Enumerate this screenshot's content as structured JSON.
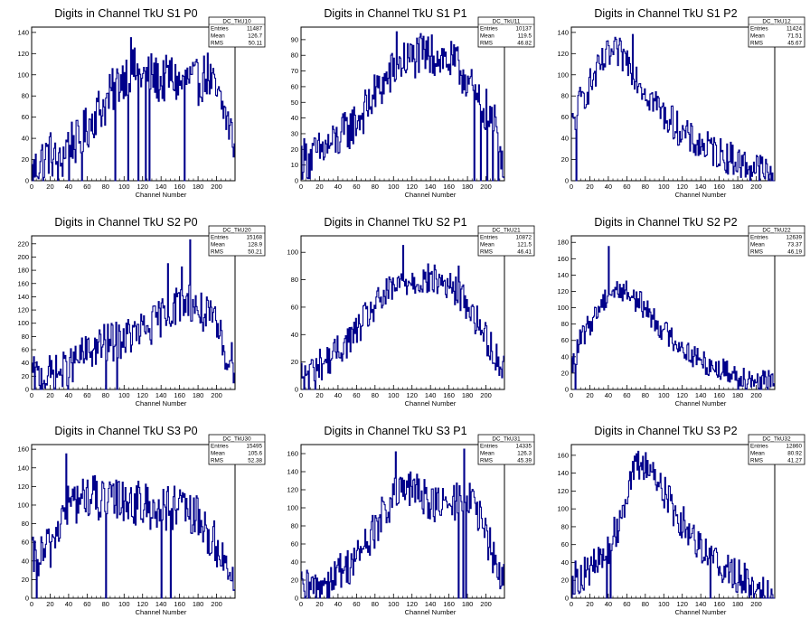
{
  "page": {
    "background": "#ffffff",
    "line_color": "#00008b"
  },
  "chart_data": [
    {
      "type": "line",
      "title": "Digits in Channel TkU S1 P0",
      "xlabel": "Channel Number",
      "xlim": [
        0,
        220
      ],
      "ylim": [
        0,
        145
      ],
      "xticks": [
        0,
        20,
        40,
        60,
        80,
        100,
        120,
        140,
        160,
        180,
        200
      ],
      "yticks": [
        0,
        20,
        40,
        60,
        80,
        100,
        120,
        140
      ],
      "stats": {
        "name": "DC_TkU10",
        "entries": "11487",
        "mean": "126.7",
        "rms": "50.11"
      },
      "profile": [
        [
          0,
          5
        ],
        [
          10,
          20
        ],
        [
          20,
          27
        ],
        [
          30,
          12
        ],
        [
          40,
          40
        ],
        [
          50,
          35
        ],
        [
          60,
          50
        ],
        [
          70,
          65
        ],
        [
          80,
          72
        ],
        [
          90,
          88
        ],
        [
          100,
          100
        ],
        [
          110,
          105
        ],
        [
          120,
          98
        ],
        [
          130,
          100
        ],
        [
          140,
          92
        ],
        [
          150,
          100
        ],
        [
          160,
          90
        ],
        [
          170,
          96
        ],
        [
          180,
          92
        ],
        [
          190,
          102
        ],
        [
          200,
          80
        ],
        [
          210,
          62
        ],
        [
          218,
          38
        ]
      ],
      "spikes": [
        [
          107,
          135
        ],
        [
          12,
          0
        ],
        [
          40,
          0
        ],
        [
          54,
          0
        ],
        [
          90,
          0
        ],
        [
          104,
          0
        ],
        [
          115,
          0
        ],
        [
          123,
          0
        ],
        [
          127,
          0
        ],
        [
          165,
          0
        ]
      ],
      "noise": 22
    },
    {
      "type": "line",
      "title": "Digits in Channel TkU S1 P1",
      "xlabel": "Channel Number",
      "xlim": [
        0,
        220
      ],
      "ylim": [
        0,
        98
      ],
      "xticks": [
        0,
        20,
        40,
        60,
        80,
        100,
        120,
        140,
        160,
        180,
        200
      ],
      "yticks": [
        0,
        10,
        20,
        30,
        40,
        50,
        60,
        70,
        80,
        90
      ],
      "stats": {
        "name": "DC_TkU11",
        "entries": "10137",
        "mean": "119.5",
        "rms": "46.82"
      },
      "profile": [
        [
          0,
          15
        ],
        [
          10,
          14
        ],
        [
          20,
          18
        ],
        [
          30,
          22
        ],
        [
          40,
          26
        ],
        [
          50,
          32
        ],
        [
          60,
          38
        ],
        [
          70,
          45
        ],
        [
          80,
          55
        ],
        [
          90,
          62
        ],
        [
          100,
          70
        ],
        [
          110,
          76
        ],
        [
          120,
          78
        ],
        [
          130,
          80
        ],
        [
          140,
          80
        ],
        [
          150,
          79
        ],
        [
          160,
          76
        ],
        [
          170,
          72
        ],
        [
          180,
          65
        ],
        [
          190,
          50
        ],
        [
          200,
          45
        ],
        [
          210,
          35
        ],
        [
          218,
          15
        ]
      ],
      "spikes": [
        [
          103,
          95
        ],
        [
          141,
          93
        ],
        [
          187,
          0
        ],
        [
          194,
          0
        ],
        [
          201,
          0
        ],
        [
          207,
          0
        ],
        [
          213,
          0
        ]
      ],
      "noise": 14
    },
    {
      "type": "line",
      "title": "Digits in Channel TkU S1 P2",
      "xlabel": "Channel Number",
      "xlim": [
        0,
        220
      ],
      "ylim": [
        0,
        145
      ],
      "xticks": [
        0,
        20,
        40,
        60,
        80,
        100,
        120,
        140,
        160,
        180,
        200
      ],
      "yticks": [
        0,
        20,
        40,
        60,
        80,
        100,
        120,
        140
      ],
      "stats": {
        "name": "DC_TkU12",
        "entries": "11424",
        "mean": "71.51",
        "rms": "45.67"
      },
      "profile": [
        [
          0,
          50
        ],
        [
          10,
          75
        ],
        [
          20,
          90
        ],
        [
          30,
          105
        ],
        [
          40,
          118
        ],
        [
          50,
          120
        ],
        [
          60,
          115
        ],
        [
          70,
          100
        ],
        [
          80,
          85
        ],
        [
          90,
          75
        ],
        [
          100,
          62
        ],
        [
          110,
          55
        ],
        [
          120,
          45
        ],
        [
          130,
          38
        ],
        [
          140,
          33
        ],
        [
          150,
          30
        ],
        [
          160,
          26
        ],
        [
          170,
          22
        ],
        [
          180,
          18
        ],
        [
          190,
          14
        ],
        [
          200,
          12
        ],
        [
          210,
          8
        ],
        [
          218,
          4
        ]
      ],
      "spikes": [
        [
          5,
          0
        ],
        [
          66,
          138
        ],
        [
          213,
          0
        ]
      ],
      "noise": 16
    },
    {
      "type": "line",
      "title": "Digits in Channel TkU S2 P0",
      "xlabel": "Channel Number",
      "xlim": [
        0,
        220
      ],
      "ylim": [
        0,
        232
      ],
      "xticks": [
        0,
        20,
        40,
        60,
        80,
        100,
        120,
        140,
        160,
        180,
        200
      ],
      "yticks": [
        0,
        20,
        40,
        60,
        80,
        100,
        120,
        140,
        160,
        180,
        200,
        220
      ],
      "stats": {
        "name": "DC_TkU20",
        "entries": "15168",
        "mean": "128.9",
        "rms": "50.21"
      },
      "profile": [
        [
          0,
          20
        ],
        [
          10,
          18
        ],
        [
          20,
          22
        ],
        [
          30,
          25
        ],
        [
          40,
          30
        ],
        [
          50,
          45
        ],
        [
          60,
          55
        ],
        [
          70,
          62
        ],
        [
          80,
          70
        ],
        [
          90,
          72
        ],
        [
          100,
          78
        ],
        [
          110,
          82
        ],
        [
          120,
          88
        ],
        [
          130,
          95
        ],
        [
          140,
          110
        ],
        [
          150,
          120
        ],
        [
          160,
          130
        ],
        [
          170,
          135
        ],
        [
          180,
          120
        ],
        [
          190,
          110
        ],
        [
          200,
          95
        ],
        [
          210,
          55
        ],
        [
          218,
          40
        ]
      ],
      "spikes": [
        [
          171,
          226
        ],
        [
          147,
          190
        ],
        [
          162,
          185
        ],
        [
          80,
          0
        ],
        [
          92,
          0
        ]
      ],
      "noise": 30
    },
    {
      "type": "line",
      "title": "Digits in Channel TkU S2 P1",
      "xlabel": "Channel Number",
      "xlim": [
        0,
        220
      ],
      "ylim": [
        0,
        112
      ],
      "xticks": [
        0,
        20,
        40,
        60,
        80,
        100,
        120,
        140,
        160,
        180,
        200
      ],
      "yticks": [
        0,
        20,
        40,
        60,
        80,
        100
      ],
      "stats": {
        "name": "DC_TkU21",
        "entries": "10872",
        "mean": "121.5",
        "rms": "46.41"
      },
      "profile": [
        [
          0,
          10
        ],
        [
          10,
          15
        ],
        [
          20,
          18
        ],
        [
          30,
          22
        ],
        [
          40,
          28
        ],
        [
          50,
          35
        ],
        [
          60,
          42
        ],
        [
          70,
          52
        ],
        [
          80,
          60
        ],
        [
          90,
          68
        ],
        [
          100,
          73
        ],
        [
          110,
          78
        ],
        [
          120,
          80
        ],
        [
          130,
          80
        ],
        [
          140,
          80
        ],
        [
          150,
          79
        ],
        [
          160,
          75
        ],
        [
          170,
          70
        ],
        [
          180,
          62
        ],
        [
          190,
          50
        ],
        [
          200,
          38
        ],
        [
          210,
          25
        ],
        [
          218,
          15
        ]
      ],
      "spikes": [
        [
          3,
          0
        ],
        [
          8,
          0
        ],
        [
          15,
          0
        ],
        [
          110,
          105
        ],
        [
          170,
          90
        ]
      ],
      "noise": 12
    },
    {
      "type": "line",
      "title": "Digits in Channel TkU S2 P2",
      "xlabel": "Channel Number",
      "xlim": [
        0,
        220
      ],
      "ylim": [
        0,
        188
      ],
      "xticks": [
        0,
        20,
        40,
        60,
        80,
        100,
        120,
        140,
        160,
        180,
        200
      ],
      "yticks": [
        0,
        20,
        40,
        60,
        80,
        100,
        120,
        140,
        160,
        180
      ],
      "stats": {
        "name": "DC_TkU22",
        "entries": "12639",
        "mean": "73.37",
        "rms": "46.19"
      },
      "profile": [
        [
          0,
          25
        ],
        [
          10,
          60
        ],
        [
          20,
          80
        ],
        [
          30,
          100
        ],
        [
          40,
          118
        ],
        [
          50,
          122
        ],
        [
          60,
          120
        ],
        [
          70,
          110
        ],
        [
          80,
          100
        ],
        [
          90,
          85
        ],
        [
          100,
          72
        ],
        [
          110,
          62
        ],
        [
          120,
          52
        ],
        [
          130,
          42
        ],
        [
          140,
          35
        ],
        [
          150,
          30
        ],
        [
          160,
          25
        ],
        [
          170,
          22
        ],
        [
          180,
          18
        ],
        [
          190,
          15
        ],
        [
          200,
          12
        ],
        [
          210,
          10
        ],
        [
          218,
          6
        ]
      ],
      "spikes": [
        [
          40,
          175
        ],
        [
          4,
          0
        ],
        [
          180,
          0
        ],
        [
          205,
          0
        ],
        [
          212,
          0
        ]
      ],
      "noise": 15
    },
    {
      "type": "line",
      "title": "Digits in Channel TkU S3 P0",
      "xlabel": "Channel Number",
      "xlim": [
        0,
        220
      ],
      "ylim": [
        0,
        165
      ],
      "xticks": [
        0,
        20,
        40,
        60,
        80,
        100,
        120,
        140,
        160,
        180,
        200
      ],
      "yticks": [
        0,
        20,
        40,
        60,
        80,
        100,
        120,
        140,
        160
      ],
      "stats": {
        "name": "DC_TkU30",
        "entries": "15495",
        "mean": "105.6",
        "rms": "52.38"
      },
      "profile": [
        [
          0,
          40
        ],
        [
          10,
          45
        ],
        [
          20,
          55
        ],
        [
          30,
          80
        ],
        [
          40,
          100
        ],
        [
          50,
          105
        ],
        [
          60,
          110
        ],
        [
          70,
          108
        ],
        [
          80,
          100
        ],
        [
          90,
          105
        ],
        [
          100,
          108
        ],
        [
          110,
          102
        ],
        [
          120,
          100
        ],
        [
          130,
          98
        ],
        [
          140,
          95
        ],
        [
          150,
          97
        ],
        [
          160,
          95
        ],
        [
          170,
          90
        ],
        [
          180,
          85
        ],
        [
          190,
          70
        ],
        [
          200,
          55
        ],
        [
          210,
          35
        ],
        [
          218,
          25
        ]
      ],
      "spikes": [
        [
          37,
          155
        ],
        [
          80,
          0
        ],
        [
          140,
          0
        ],
        [
          150,
          0
        ],
        [
          5,
          0
        ]
      ],
      "noise": 25
    },
    {
      "type": "line",
      "title": "Digits in Channel TkU S3 P1",
      "xlabel": "Channel Number",
      "xlim": [
        0,
        220
      ],
      "ylim": [
        0,
        170
      ],
      "xticks": [
        0,
        20,
        40,
        60,
        80,
        100,
        120,
        140,
        160,
        180,
        200
      ],
      "yticks": [
        0,
        20,
        40,
        60,
        80,
        100,
        120,
        140,
        160
      ],
      "stats": {
        "name": "DC_TkU31",
        "entries": "14335",
        "mean": "126.3",
        "rms": "45.39"
      },
      "profile": [
        [
          0,
          8
        ],
        [
          10,
          10
        ],
        [
          20,
          15
        ],
        [
          30,
          20
        ],
        [
          40,
          28
        ],
        [
          50,
          35
        ],
        [
          60,
          45
        ],
        [
          70,
          60
        ],
        [
          80,
          75
        ],
        [
          90,
          95
        ],
        [
          100,
          110
        ],
        [
          110,
          118
        ],
        [
          120,
          120
        ],
        [
          130,
          115
        ],
        [
          140,
          108
        ],
        [
          150,
          102
        ],
        [
          160,
          100
        ],
        [
          170,
          110
        ],
        [
          180,
          115
        ],
        [
          190,
          95
        ],
        [
          200,
          70
        ],
        [
          210,
          40
        ],
        [
          218,
          20
        ]
      ],
      "spikes": [
        [
          102,
          162
        ],
        [
          176,
          165
        ],
        [
          4,
          0
        ],
        [
          170,
          0
        ],
        [
          175,
          0
        ],
        [
          178,
          0
        ]
      ],
      "noise": 22
    },
    {
      "type": "line",
      "title": "Digits in Channel TkU S3 P2",
      "xlabel": "Channel Number",
      "xlim": [
        0,
        220
      ],
      "ylim": [
        0,
        172
      ],
      "xticks": [
        0,
        20,
        40,
        60,
        80,
        100,
        120,
        140,
        160,
        180,
        200
      ],
      "yticks": [
        0,
        20,
        40,
        60,
        80,
        100,
        120,
        140,
        160
      ],
      "stats": {
        "name": "DC_TkU32",
        "entries": "12860",
        "mean": "80.92",
        "rms": "41.27"
      },
      "profile": [
        [
          0,
          20
        ],
        [
          10,
          25
        ],
        [
          20,
          32
        ],
        [
          30,
          40
        ],
        [
          40,
          55
        ],
        [
          50,
          80
        ],
        [
          60,
          120
        ],
        [
          70,
          145
        ],
        [
          80,
          150
        ],
        [
          90,
          140
        ],
        [
          100,
          120
        ],
        [
          110,
          100
        ],
        [
          120,
          85
        ],
        [
          130,
          72
        ],
        [
          140,
          60
        ],
        [
          150,
          48
        ],
        [
          160,
          38
        ],
        [
          170,
          30
        ],
        [
          180,
          25
        ],
        [
          190,
          18
        ],
        [
          200,
          12
        ],
        [
          210,
          8
        ],
        [
          218,
          5
        ]
      ],
      "spikes": [
        [
          38,
          0
        ],
        [
          42,
          0
        ],
        [
          150,
          0
        ]
      ],
      "noise": 20
    }
  ]
}
